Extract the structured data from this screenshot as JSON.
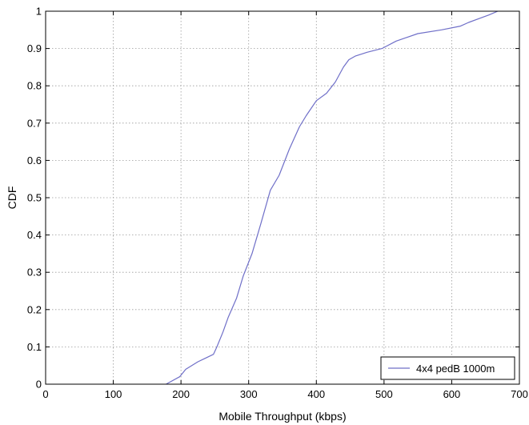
{
  "chart_data": {
    "type": "line",
    "title": "",
    "xlabel": "Mobile Throughput (kbps)",
    "ylabel": "CDF",
    "xlim": [
      0,
      700
    ],
    "ylim": [
      0,
      1
    ],
    "xticks": [
      0,
      100,
      200,
      300,
      400,
      500,
      600,
      700
    ],
    "yticks": [
      0,
      0.1,
      0.2,
      0.3,
      0.4,
      0.5,
      0.6,
      0.7,
      0.8,
      0.9,
      1
    ],
    "xtick_labels": [
      "0",
      "100",
      "200",
      "300",
      "400",
      "500",
      "600",
      "700"
    ],
    "ytick_labels": [
      "0",
      "0.1",
      "0.2",
      "0.3",
      "0.4",
      "0.5",
      "0.6",
      "0.7",
      "0.8",
      "0.9",
      "1"
    ],
    "grid": true,
    "legend_position": "bottom-right",
    "series": [
      {
        "name": "4x4 pedB 1000m",
        "color": "#6f6fc8",
        "x": [
          178,
          198,
          207,
          225,
          248,
          253,
          262,
          270,
          282,
          292,
          305,
          318,
          332,
          345,
          360,
          375,
          385,
          400,
          415,
          428,
          440,
          448,
          458,
          475,
          497,
          518,
          550,
          585,
          613,
          625,
          640,
          655,
          668
        ],
        "y": [
          0,
          0.02,
          0.04,
          0.06,
          0.08,
          0.1,
          0.14,
          0.18,
          0.23,
          0.29,
          0.35,
          0.43,
          0.52,
          0.56,
          0.63,
          0.69,
          0.72,
          0.76,
          0.78,
          0.81,
          0.85,
          0.87,
          0.88,
          0.89,
          0.9,
          0.92,
          0.94,
          0.95,
          0.96,
          0.97,
          0.98,
          0.99,
          1
        ]
      }
    ]
  }
}
